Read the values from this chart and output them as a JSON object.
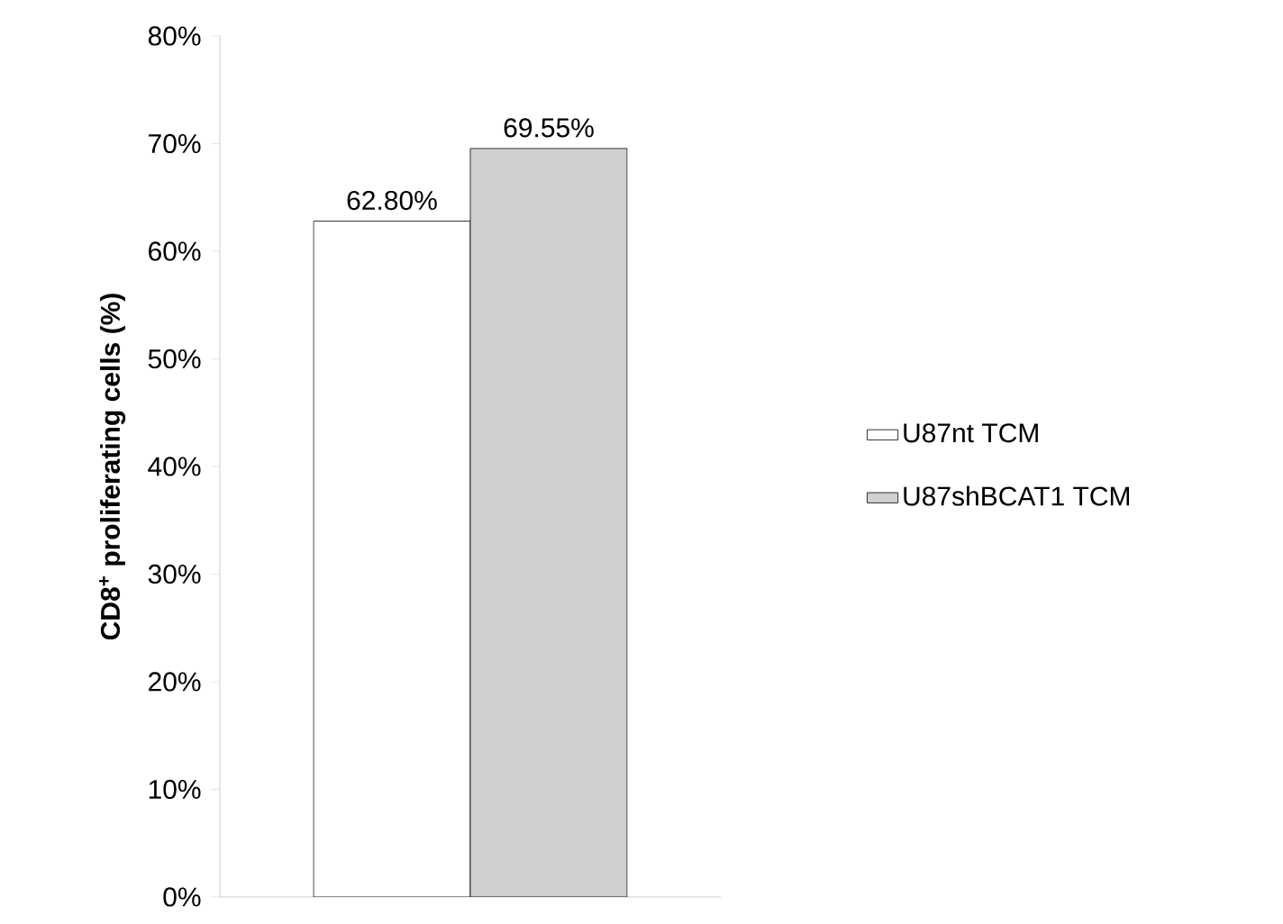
{
  "chart_data": {
    "type": "bar",
    "ylabel": "CD8$^{+}$ proliferating cells (%)",
    "categories": [
      null
    ],
    "series": [
      {
        "name": "U87nt TCM",
        "color": "#ffffff",
        "values": [
          62.8
        ],
        "value_labels": [
          "62.80%"
        ]
      },
      {
        "name": "U87shBCAT1 TCM",
        "color": "#d0d0d0",
        "values": [
          69.55
        ],
        "value_labels": [
          "69.55%"
        ]
      }
    ],
    "ylim": [
      0,
      80
    ],
    "yticks": [
      {
        "value": 0,
        "label": "0%"
      },
      {
        "value": 10,
        "label": "10%"
      },
      {
        "value": 20,
        "label": "20%"
      },
      {
        "value": 30,
        "label": "30%"
      },
      {
        "value": 40,
        "label": "40%"
      },
      {
        "value": 50,
        "label": "50%"
      },
      {
        "value": 60,
        "label": "60%"
      },
      {
        "value": 70,
        "label": "70%"
      },
      {
        "value": 80,
        "label": "80%"
      }
    ],
    "legend": "right",
    "grid": false
  }
}
